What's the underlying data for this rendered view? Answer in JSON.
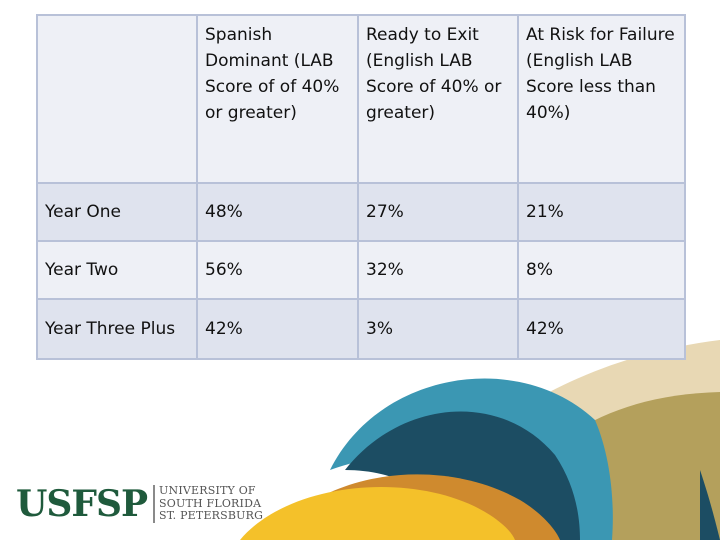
{
  "table": {
    "columns": [
      "",
      "Spanish Dominant (LAB Score of of 40% or greater)",
      "Ready to Exit (English LAB Score of 40% or greater)",
      "At Risk for Failure (English LAB Score less than 40%)"
    ],
    "rows": [
      {
        "label": "Year One",
        "cells": [
          "48%",
          "27%",
          "21%"
        ]
      },
      {
        "label": "Year Two",
        "cells": [
          "56%",
          "32%",
          "8%"
        ]
      },
      {
        "label": "Year Three Plus",
        "cells": [
          "42%",
          "3%",
          "42%"
        ]
      }
    ]
  },
  "logo": {
    "mark": "USFSP",
    "lines": [
      "UNIVERSITY OF",
      "SOUTH FLORIDA",
      "ST. PETERSBURG"
    ]
  },
  "colors": {
    "header_bg": "#eef0f6",
    "row_alt_bg": "#dfe3ee",
    "border": "#b8c1d8",
    "logo_green": "#1f5a3c",
    "teal": "#3b97b3",
    "navy": "#1c4d63",
    "olive": "#b4a05c",
    "sand": "#e8d8b4",
    "orange": "#cf8a2e",
    "gold": "#f4c12a"
  }
}
